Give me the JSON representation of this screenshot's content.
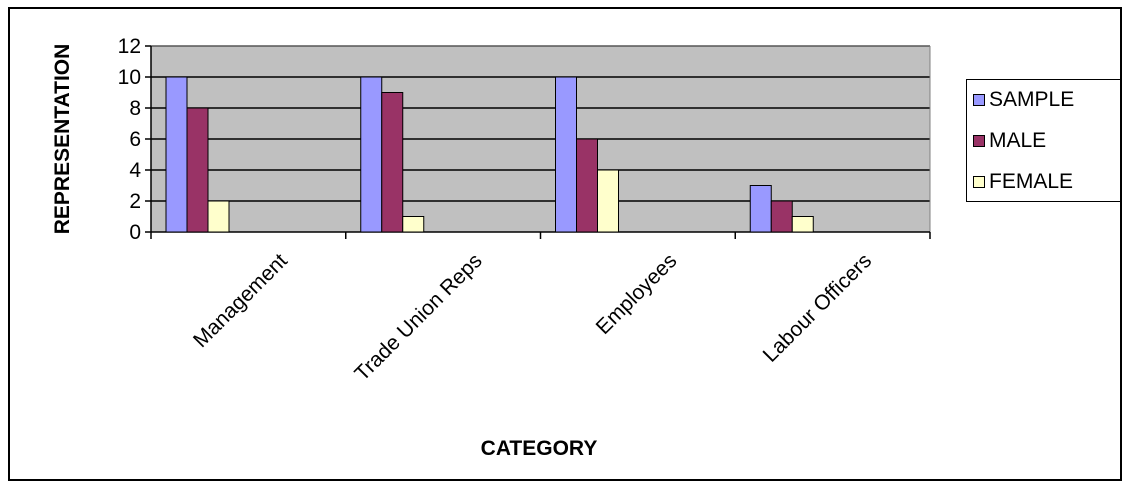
{
  "chart_data": {
    "type": "bar",
    "xlabel": "CATEGORY",
    "ylabel": "REPRESENTATION",
    "categories": [
      "Management",
      "Trade Union Reps",
      "Employees",
      "Labour Officers"
    ],
    "series": [
      {
        "name": "SAMPLE",
        "values": [
          10,
          10,
          10,
          3
        ],
        "color": "#9999ff"
      },
      {
        "name": "MALE",
        "values": [
          8,
          9,
          6,
          2
        ],
        "color": "#993366"
      },
      {
        "name": "FEMALE",
        "values": [
          2,
          1,
          4,
          1
        ],
        "color": "#ffffcc"
      }
    ],
    "ylim": [
      0,
      12
    ],
    "yticks": [
      "0",
      "2",
      "4",
      "6",
      "8",
      "10",
      "12"
    ],
    "grid": true,
    "plot_background": "#c0c0c0",
    "legend_position": "right"
  }
}
